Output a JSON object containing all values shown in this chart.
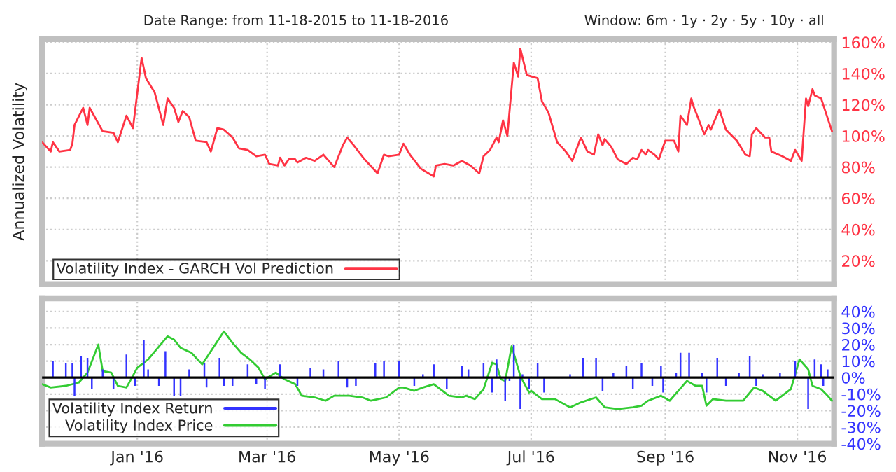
{
  "chart_data": [
    {
      "type": "line",
      "ylabel": "Annualized Volatility",
      "annotations": [
        "Date Range: from 11-18-2015 to 11-18-2016",
        "Window: 6m · 1y · 2y · 5y · 10y · all"
      ],
      "xlim": [
        "2015-11-18",
        "2016-11-18"
      ],
      "xticks": [
        {
          "value": "2016-01-01",
          "label": null
        },
        {
          "value": "2016-03-01",
          "label": null
        },
        {
          "value": "2016-05-01",
          "label": null
        },
        {
          "value": "2016-07-01",
          "label": null
        },
        {
          "value": "2016-09-01",
          "label": null
        },
        {
          "value": "2016-11-01",
          "label": null
        }
      ],
      "ylim": [
        5,
        162
      ],
      "yticks": [
        {
          "value": 20,
          "label": "20%"
        },
        {
          "value": 40,
          "label": "40%"
        },
        {
          "value": 60,
          "label": "60%"
        },
        {
          "value": 80,
          "label": "80%"
        },
        {
          "value": 100,
          "label": "100%"
        },
        {
          "value": 120,
          "label": "120%"
        },
        {
          "value": 140,
          "label": "140%"
        },
        {
          "value": 160,
          "label": "160%"
        }
      ],
      "tick_labels": "y",
      "grid": true,
      "legend": "bottom",
      "series": [
        {
          "name": "Volatility Index - GARCH Vol Prediction",
          "color": "#ff3344",
          "x": [
            "2015-11-18",
            "2015-11-22",
            "2015-11-23",
            "2015-11-26",
            "2015-12-01",
            "2015-12-02",
            "2015-12-03",
            "2015-12-07",
            "2015-12-09",
            "2015-12-10",
            "2015-12-16",
            "2015-12-21",
            "2015-12-23",
            "2015-12-27",
            "2015-12-30",
            "2016-01-03",
            "2016-01-05",
            "2016-01-09",
            "2016-01-13",
            "2016-01-15",
            "2016-01-18",
            "2016-01-20",
            "2016-01-22",
            "2016-01-25",
            "2016-01-28",
            "2016-02-02",
            "2016-02-04",
            "2016-02-07",
            "2016-02-10",
            "2016-02-14",
            "2016-02-17",
            "2016-02-21",
            "2016-02-25",
            "2016-02-29",
            "2016-03-02",
            "2016-03-06",
            "2016-03-07",
            "2016-03-09",
            "2016-03-11",
            "2016-03-14",
            "2016-03-15",
            "2016-03-19",
            "2016-03-23",
            "2016-03-27",
            "2016-04-01",
            "2016-04-05",
            "2016-04-07",
            "2016-04-10",
            "2016-04-15",
            "2016-04-21",
            "2016-04-24",
            "2016-04-26",
            "2016-05-01",
            "2016-05-03",
            "2016-05-06",
            "2016-05-11",
            "2016-05-17",
            "2016-05-18",
            "2016-05-22",
            "2016-05-26",
            "2016-05-30",
            "2016-06-03",
            "2016-06-07",
            "2016-06-09",
            "2016-06-12",
            "2016-06-15",
            "2016-06-16",
            "2016-06-18",
            "2016-06-20",
            "2016-06-23",
            "2016-06-25",
            "2016-06-26",
            "2016-06-29",
            "2016-07-04",
            "2016-07-06",
            "2016-07-09",
            "2016-07-13",
            "2016-07-17",
            "2016-07-20",
            "2016-07-24",
            "2016-07-27",
            "2016-07-30",
            "2016-08-01",
            "2016-08-03",
            "2016-08-04",
            "2016-08-07",
            "2016-08-10",
            "2016-08-14",
            "2016-08-17",
            "2016-08-19",
            "2016-08-21",
            "2016-08-23",
            "2016-08-24",
            "2016-08-27",
            "2016-08-29",
            "2016-09-01",
            "2016-09-05",
            "2016-09-07",
            "2016-09-08",
            "2016-09-11",
            "2016-09-13",
            "2016-09-14",
            "2016-09-16",
            "2016-09-19",
            "2016-09-21",
            "2016-09-22",
            "2016-09-26",
            "2016-09-29",
            "2016-10-04",
            "2016-10-08",
            "2016-10-10",
            "2016-10-11",
            "2016-10-13",
            "2016-10-17",
            "2016-10-19",
            "2016-10-20",
            "2016-10-25",
            "2016-10-29",
            "2016-10-31",
            "2016-11-03",
            "2016-11-05",
            "2016-11-06",
            "2016-11-08",
            "2016-11-09",
            "2016-11-12",
            "2016-11-17"
          ],
          "values": [
            96,
            90,
            96,
            90,
            91,
            95,
            107,
            118,
            107,
            118,
            103,
            102,
            96,
            113,
            105,
            150,
            137,
            128,
            107,
            124,
            118,
            109,
            116,
            112,
            97,
            96,
            90,
            105,
            104,
            99,
            92,
            91,
            87,
            88,
            82,
            81,
            86,
            81,
            85,
            85,
            83,
            86,
            84,
            88,
            80,
            94,
            99,
            94,
            85,
            76,
            88,
            87,
            88,
            95,
            88,
            79,
            74,
            81,
            82,
            81,
            84,
            81,
            76,
            87,
            91,
            99,
            96,
            110,
            100,
            147,
            138,
            156,
            139,
            137,
            122,
            115,
            96,
            90,
            84,
            99,
            90,
            88,
            101,
            94,
            98,
            93,
            85,
            82,
            86,
            85,
            91,
            88,
            91,
            88,
            85,
            97,
            97,
            90,
            113,
            107,
            124,
            119,
            112,
            101,
            107,
            104,
            117,
            104,
            97,
            88,
            87,
            101,
            105,
            99,
            99,
            90,
            87,
            84,
            91,
            84,
            124,
            119,
            130,
            126,
            124,
            103
          ]
        }
      ]
    },
    {
      "type": "bar",
      "xlim": [
        "2015-11-18",
        "2016-11-18"
      ],
      "xticks": [
        {
          "value": "2016-01-01",
          "label": "Jan '16"
        },
        {
          "value": "2016-03-01",
          "label": "Mar '16"
        },
        {
          "value": "2016-05-01",
          "label": "May '16"
        },
        {
          "value": "2016-07-01",
          "label": "Jul '16"
        },
        {
          "value": "2016-09-01",
          "label": "Sep '16"
        },
        {
          "value": "2016-11-01",
          "label": "Nov '16"
        }
      ],
      "ylim": [
        -40,
        48
      ],
      "yticks": [
        {
          "value": -40,
          "label": "-40%"
        },
        {
          "value": -30,
          "label": "-30%"
        },
        {
          "value": -20,
          "label": "-20%"
        },
        {
          "value": -10,
          "label": "-10%"
        },
        {
          "value": 0,
          "label": "0%"
        },
        {
          "value": 10,
          "label": "10%"
        },
        {
          "value": 20,
          "label": "20%"
        },
        {
          "value": 30,
          "label": "30%"
        },
        {
          "value": 40,
          "label": "40%"
        }
      ],
      "grid": true,
      "legend": "bottom left",
      "ref_lines": [
        {
          "axis": "y",
          "value": 0,
          "color": "#000000"
        }
      ],
      "series": [
        {
          "name": "Volatility Index Return",
          "color": "#3333ff",
          "x": [
            "2015-11-23",
            "2015-11-29",
            "2015-12-02",
            "2015-12-03",
            "2015-12-06",
            "2015-12-09",
            "2015-12-11",
            "2015-12-16",
            "2015-12-21",
            "2015-12-27",
            "2015-12-31",
            "2016-01-04",
            "2016-01-06",
            "2016-01-11",
            "2016-01-14",
            "2016-01-18",
            "2016-01-21",
            "2016-01-25",
            "2016-02-01",
            "2016-02-02",
            "2016-02-08",
            "2016-02-10",
            "2016-02-14",
            "2016-02-21",
            "2016-02-25",
            "2016-02-29",
            "2016-03-07",
            "2016-03-15",
            "2016-03-21",
            "2016-03-27",
            "2016-04-03",
            "2016-04-07",
            "2016-04-11",
            "2016-04-20",
            "2016-04-24",
            "2016-05-01",
            "2016-05-08",
            "2016-05-12",
            "2016-05-17",
            "2016-05-23",
            "2016-05-30",
            "2016-06-02",
            "2016-06-09",
            "2016-06-13",
            "2016-06-15",
            "2016-06-19",
            "2016-06-21",
            "2016-06-23",
            "2016-06-26",
            "2016-06-27",
            "2016-06-30",
            "2016-07-04",
            "2016-07-07",
            "2016-07-19",
            "2016-07-25",
            "2016-07-31",
            "2016-08-03",
            "2016-08-08",
            "2016-08-14",
            "2016-08-17",
            "2016-08-21",
            "2016-08-26",
            "2016-08-30",
            "2016-08-31",
            "2016-09-06",
            "2016-09-08",
            "2016-09-12",
            "2016-09-18",
            "2016-09-20",
            "2016-09-25",
            "2016-09-29",
            "2016-10-05",
            "2016-10-10",
            "2016-10-13",
            "2016-10-16",
            "2016-10-24",
            "2016-10-31",
            "2016-11-06",
            "2016-11-09",
            "2016-11-12",
            "2016-11-13",
            "2016-11-15"
          ],
          "values": [
            10,
            9,
            9,
            -11,
            13,
            12,
            -7,
            5,
            -7,
            14,
            -5,
            23,
            5,
            -5,
            16,
            -11,
            -11,
            5,
            9,
            -6,
            12,
            -5,
            -5,
            8,
            -4,
            -7,
            8,
            -5,
            6,
            5,
            10,
            -6,
            -5,
            9,
            10,
            10,
            -5,
            2,
            8,
            -7,
            7,
            5,
            9,
            -9,
            11,
            -14,
            -2,
            20,
            -19,
            2,
            -7,
            9,
            -9,
            2,
            12,
            12,
            -8,
            3,
            7,
            -7,
            9,
            -5,
            7,
            -9,
            3,
            15,
            15,
            3,
            -9,
            12,
            -5,
            3,
            13,
            -5,
            2,
            3,
            10,
            -19,
            11,
            8,
            -5,
            5
          ]
        },
        {
          "name": "Volatility Index Price",
          "color": "#33cc33",
          "type": "line",
          "x": [
            "2015-11-18",
            "2015-11-22",
            "2015-11-29",
            "2015-12-05",
            "2015-12-09",
            "2015-12-14",
            "2015-12-16",
            "2015-12-20",
            "2015-12-23",
            "2015-12-27",
            "2016-01-01",
            "2016-01-06",
            "2016-01-15",
            "2016-01-18",
            "2016-01-21",
            "2016-01-26",
            "2016-01-31",
            "2016-02-05",
            "2016-02-10",
            "2016-02-14",
            "2016-02-18",
            "2016-02-22",
            "2016-02-26",
            "2016-02-29",
            "2016-03-05",
            "2016-03-09",
            "2016-03-14",
            "2016-03-17",
            "2016-03-23",
            "2016-03-28",
            "2016-04-01",
            "2016-04-08",
            "2016-04-14",
            "2016-04-18",
            "2016-04-25",
            "2016-05-01",
            "2016-05-03",
            "2016-05-08",
            "2016-05-12",
            "2016-05-17",
            "2016-05-24",
            "2016-05-30",
            "2016-06-01",
            "2016-06-05",
            "2016-06-09",
            "2016-06-13",
            "2016-06-15",
            "2016-06-17",
            "2016-06-19",
            "2016-06-22",
            "2016-06-26",
            "2016-06-30",
            "2016-07-01",
            "2016-07-06",
            "2016-07-12",
            "2016-07-19",
            "2016-07-24",
            "2016-07-31",
            "2016-08-04",
            "2016-08-10",
            "2016-08-17",
            "2016-08-21",
            "2016-08-24",
            "2016-08-30",
            "2016-09-03",
            "2016-09-07",
            "2016-09-11",
            "2016-09-15",
            "2016-09-18",
            "2016-09-20",
            "2016-09-23",
            "2016-09-29",
            "2016-10-07",
            "2016-10-12",
            "2016-10-16",
            "2016-10-22",
            "2016-10-29",
            "2016-11-02",
            "2016-11-06",
            "2016-11-08",
            "2016-11-12",
            "2016-11-15",
            "2016-11-17"
          ],
          "values": [
            -4,
            -6,
            -5,
            -3,
            3,
            20,
            4,
            3,
            -5,
            -6,
            6,
            11,
            25,
            23,
            18,
            15,
            8,
            18,
            28,
            21,
            15,
            11,
            6,
            -1,
            3,
            -1,
            -4,
            -11,
            -12,
            -14,
            -11,
            -11,
            -12,
            -14,
            -12,
            -6,
            -6,
            -8,
            -6,
            -4,
            -11,
            -12,
            -11,
            -13,
            -7,
            9,
            8,
            -1,
            -2,
            19,
            1,
            -9,
            -8,
            -13,
            -13,
            -18,
            -15,
            -12,
            -18,
            -19,
            -18,
            -17,
            -14,
            -11,
            -14,
            -8,
            -2,
            -5,
            -5,
            -17,
            -13,
            -14,
            -14,
            -6,
            -8,
            -14,
            -7,
            11,
            5,
            -5,
            -7,
            -11,
            -14
          ]
        }
      ]
    }
  ]
}
